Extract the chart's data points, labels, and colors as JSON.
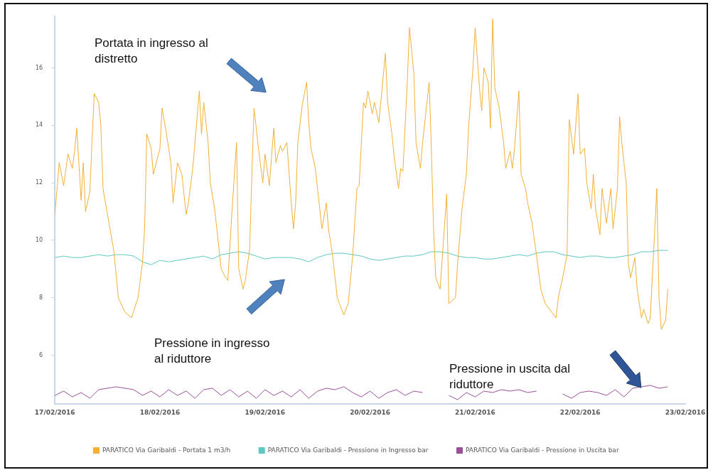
{
  "chart_data": {
    "type": "line",
    "x": [
      "2016-02-17T00:00",
      "2016-02-17T02:00",
      "2016-02-17T04:00",
      "2016-02-17T06:00",
      "2016-02-17T08:00",
      "2016-02-17T10:00",
      "2016-02-17T12:00",
      "2016-02-17T14:00",
      "2016-02-17T16:00",
      "2016-02-17T18:00",
      "2016-02-17T20:00",
      "2016-02-17T22:00",
      "2016-02-18T00:00",
      "2016-02-18T02:00",
      "2016-02-18T04:00",
      "2016-02-18T06:00",
      "2016-02-18T08:00",
      "2016-02-18T10:00",
      "2016-02-18T12:00",
      "2016-02-18T14:00",
      "2016-02-18T16:00",
      "2016-02-18T18:00",
      "2016-02-18T20:00",
      "2016-02-18T22:00",
      "2016-02-19T00:00",
      "2016-02-19T02:00",
      "2016-02-19T04:00",
      "2016-02-19T06:00",
      "2016-02-19T08:00",
      "2016-02-19T10:00",
      "2016-02-19T12:00",
      "2016-02-19T14:00",
      "2016-02-19T16:00",
      "2016-02-19T18:00",
      "2016-02-19T20:00",
      "2016-02-19T22:00",
      "2016-02-20T00:00",
      "2016-02-20T02:00",
      "2016-02-20T04:00",
      "2016-02-20T06:00",
      "2016-02-20T08:00",
      "2016-02-20T10:00",
      "2016-02-20T12:00",
      "2016-02-20T14:00",
      "2016-02-20T16:00",
      "2016-02-20T18:00",
      "2016-02-20T20:00",
      "2016-02-20T22:00",
      "2016-02-21T00:00",
      "2016-02-21T02:00",
      "2016-02-21T04:00",
      "2016-02-21T06:00",
      "2016-02-21T08:00",
      "2016-02-21T10:00",
      "2016-02-21T12:00",
      "2016-02-21T14:00",
      "2016-02-21T16:00",
      "2016-02-21T18:00",
      "2016-02-21T20:00",
      "2016-02-21T22:00",
      "2016-02-22T00:00",
      "2016-02-22T02:00",
      "2016-02-22T04:00",
      "2016-02-22T06:00",
      "2016-02-22T08:00",
      "2016-02-22T10:00",
      "2016-02-22T12:00",
      "2016-02-22T14:00",
      "2016-02-22T16:00",
      "2016-02-22T18:00",
      "2016-02-22T20:00"
    ],
    "series": [
      {
        "name": "PARATICO Via Garibaldi - Portata 1 m3/h",
        "color": "#f2b134",
        "x": [
          "2016-02-17T00:00",
          "2016-02-17T01:00",
          "2016-02-17T02:00",
          "2016-02-17T03:00",
          "2016-02-17T04:00",
          "2016-02-17T04:30",
          "2016-02-17T05:00",
          "2016-02-17T06:00",
          "2016-02-17T06:30",
          "2016-02-17T07:00",
          "2016-02-17T08:00",
          "2016-02-17T08:30",
          "2016-02-17T09:00",
          "2016-02-17T10:00",
          "2016-02-17T10:30",
          "2016-02-17T11:00",
          "2016-02-17T13:30",
          "2016-02-17T14:30",
          "2016-02-17T16:00",
          "2016-02-17T17:30",
          "2016-02-17T19:00",
          "2016-02-17T20:00",
          "2016-02-17T20:30",
          "2016-02-17T21:00",
          "2016-02-17T22:00",
          "2016-02-17T22:30",
          "2016-02-18T00:00",
          "2016-02-18T00:30",
          "2016-02-18T01:30",
          "2016-02-18T02:30",
          "2016-02-18T03:00",
          "2016-02-18T04:00",
          "2016-02-18T05:00",
          "2016-02-18T06:00",
          "2016-02-18T06:30",
          "2016-02-18T07:30",
          "2016-02-18T09:00",
          "2016-02-18T09:30",
          "2016-02-18T10:00",
          "2016-02-18T11:00",
          "2016-02-18T11:30",
          "2016-02-18T12:30",
          "2016-02-18T13:00",
          "2016-02-18T14:00",
          "2016-02-18T15:00",
          "2016-02-18T15:30",
          "2016-02-18T16:30",
          "2016-02-18T17:30",
          "2016-02-18T18:00",
          "2016-02-18T19:00",
          "2016-02-18T19:30",
          "2016-02-18T20:30",
          "2016-02-18T21:00",
          "2016-02-18T21:30",
          "2016-02-18T22:30",
          "2016-02-18T23:30",
          "2016-02-19T00:00",
          "2016-02-19T01:00",
          "2016-02-19T02:00",
          "2016-02-19T02:30",
          "2016-02-19T03:30",
          "2016-02-19T04:00",
          "2016-02-19T05:00",
          "2016-02-19T06:00",
          "2016-02-19T06:30",
          "2016-02-19T07:00",
          "2016-02-19T07:30",
          "2016-02-19T08:30",
          "2016-02-19T09:30",
          "2016-02-19T10:00",
          "2016-02-19T10:30",
          "2016-02-19T11:30",
          "2016-02-19T12:30",
          "2016-02-19T13:00",
          "2016-02-19T14:00",
          "2016-02-19T14:30",
          "2016-02-19T15:30",
          "2016-02-19T16:30",
          "2016-02-19T18:00",
          "2016-02-19T19:00",
          "2016-02-19T20:00",
          "2016-02-19T21:00",
          "2016-02-19T21:30",
          "2016-02-19T22:30",
          "2016-02-19T23:00",
          "2016-02-19T23:30",
          "2016-02-20T00:30",
          "2016-02-20T01:00",
          "2016-02-20T02:00",
          "2016-02-20T03:30",
          "2016-02-20T04:00",
          "2016-02-20T05:00",
          "2016-02-20T05:30",
          "2016-02-20T06:30",
          "2016-02-20T07:00",
          "2016-02-20T07:30",
          "2016-02-20T08:30",
          "2016-02-20T09:00",
          "2016-02-20T10:00",
          "2016-02-20T10:30",
          "2016-02-20T11:30",
          "2016-02-20T12:00",
          "2016-02-20T13:30",
          "2016-02-20T14:00",
          "2016-02-20T14:30",
          "2016-02-20T15:00",
          "2016-02-20T16:00",
          "2016-02-20T17:30",
          "2016-02-20T18:00",
          "2016-02-20T19:30",
          "2016-02-20T20:00",
          "2016-02-20T21:00",
          "2016-02-20T22:00",
          "2016-02-20T22:30",
          "2016-02-20T23:30",
          "2016-02-21T00:00",
          "2016-02-21T01:00",
          "2016-02-21T01:30",
          "2016-02-21T02:00",
          "2016-02-21T03:00",
          "2016-02-21T03:30",
          "2016-02-21T04:00",
          "2016-02-21T04:30",
          "2016-02-21T05:30",
          "2016-02-21T06:30",
          "2016-02-21T07:00",
          "2016-02-21T08:00",
          "2016-02-21T08:30",
          "2016-02-21T09:00",
          "2016-02-21T10:00",
          "2016-02-21T10:30",
          "2016-02-21T11:30",
          "2016-02-21T12:00",
          "2016-02-21T13:00",
          "2016-02-21T14:00",
          "2016-02-21T15:00",
          "2016-02-21T16:00",
          "2016-02-21T17:00",
          "2016-02-21T18:30",
          "2016-02-21T19:00",
          "2016-02-21T20:00",
          "2016-02-21T21:00",
          "2016-02-21T21:30",
          "2016-02-21T22:30",
          "2016-02-21T23:30",
          "2016-02-22T00:00",
          "2016-02-22T01:00",
          "2016-02-22T01:30",
          "2016-02-22T02:30",
          "2016-02-22T03:00",
          "2016-02-22T03:30",
          "2016-02-22T04:30",
          "2016-02-22T05:00",
          "2016-02-22T06:00",
          "2016-02-22T07:00",
          "2016-02-22T07:30",
          "2016-02-22T08:30",
          "2016-02-22T09:00",
          "2016-02-22T09:30",
          "2016-02-22T10:30",
          "2016-02-22T11:00",
          "2016-02-22T11:30",
          "2016-02-22T12:30",
          "2016-02-22T13:00",
          "2016-02-22T14:00",
          "2016-02-22T14:30",
          "2016-02-22T15:30",
          "2016-02-22T16:00",
          "2016-02-22T17:30",
          "2016-02-22T18:00",
          "2016-02-22T18:30",
          "2016-02-22T19:30",
          "2016-02-22T20:00"
        ],
        "values": [
          10.9,
          12.7,
          11.9,
          13.0,
          12.5,
          13.1,
          13.9,
          11.4,
          12.7,
          11.0,
          11.7,
          13.5,
          15.1,
          14.8,
          14.0,
          11.8,
          9.6,
          8.0,
          7.5,
          7.3,
          8.0,
          9.2,
          10.4,
          13.7,
          13.2,
          12.3,
          13.2,
          14.6,
          13.7,
          12.7,
          11.3,
          12.7,
          12.3,
          10.9,
          11.3,
          12.5,
          15.2,
          13.7,
          14.8,
          13.4,
          12.0,
          11.1,
          10.4,
          9.0,
          8.7,
          8.6,
          11.1,
          13.4,
          9.0,
          8.3,
          8.6,
          9.7,
          12.3,
          14.6,
          13.2,
          12.0,
          13.0,
          11.9,
          13.9,
          12.7,
          13.3,
          13.1,
          13.4,
          11.3,
          10.4,
          11.3,
          13.4,
          14.7,
          15.5,
          14.1,
          13.2,
          12.5,
          11.1,
          10.4,
          11.3,
          10.4,
          9.4,
          8.0,
          7.4,
          7.8,
          9.4,
          11.8,
          11.9,
          14.8,
          14.6,
          15.2,
          14.4,
          14.8,
          14.1,
          16.5,
          14.8,
          13.7,
          12.9,
          11.8,
          12.5,
          12.4,
          15.5,
          17.4,
          15.8,
          13.4,
          12.5,
          13.4,
          15.5,
          13.2,
          10.4,
          8.7,
          8.3,
          11.6,
          7.8,
          8.0,
          9.2,
          11.1,
          12.3,
          13.9,
          16.0,
          17.4,
          15.3,
          14.5,
          16.0,
          15.5,
          13.9,
          17.7,
          15.3,
          14.6,
          13.4,
          12.5,
          13.1,
          12.5,
          13.2,
          15.2,
          12.3,
          11.8,
          11.3,
          10.6,
          9.5,
          8.3,
          7.8,
          7.6,
          7.3,
          8.0,
          8.7,
          9.5,
          14.2,
          13.0,
          15.1,
          13.0,
          13.2,
          12.0,
          11.1,
          12.3,
          11.1,
          10.2,
          11.8,
          10.6,
          11.8,
          10.4,
          11.8,
          14.3,
          13.4,
          12.0,
          9.2,
          8.7,
          9.4,
          8.3,
          7.3,
          7.6,
          7.1,
          7.3,
          11.8,
          8.0,
          6.9,
          7.2,
          8.3
        ]
      },
      {
        "name": "PARATICO Via Garibaldi - Pressione in Ingresso bar",
        "color": "#5cc9c0",
        "values": [
          9.4,
          9.45,
          9.4,
          9.4,
          9.45,
          9.5,
          9.45,
          9.5,
          9.5,
          9.45,
          9.25,
          9.15,
          9.3,
          9.25,
          9.3,
          9.35,
          9.4,
          9.45,
          9.35,
          9.5,
          9.55,
          9.6,
          9.55,
          9.45,
          9.35,
          9.4,
          9.4,
          9.4,
          9.35,
          9.25,
          9.4,
          9.5,
          9.55,
          9.55,
          9.5,
          9.45,
          9.35,
          9.3,
          9.35,
          9.4,
          9.45,
          9.45,
          9.5,
          9.6,
          9.6,
          9.55,
          9.45,
          9.4,
          9.4,
          9.35,
          9.35,
          9.4,
          9.45,
          9.5,
          9.45,
          9.55,
          9.6,
          9.6,
          9.5,
          9.45,
          9.4,
          9.45,
          9.45,
          9.4,
          9.4,
          9.45,
          9.5,
          9.6,
          9.6,
          9.65,
          9.65
        ]
      },
      {
        "name": "PARATICO Via Garibaldi - Pressione in Uscita bar",
        "color": "#9b4f9b",
        "values": [
          4.6,
          4.75,
          4.55,
          4.7,
          4.5,
          4.8,
          4.85,
          4.9,
          4.85,
          4.8,
          4.6,
          4.75,
          4.55,
          4.8,
          4.6,
          4.75,
          4.5,
          4.8,
          4.85,
          4.6,
          4.8,
          4.55,
          4.75,
          4.5,
          4.8,
          4.6,
          4.75,
          4.55,
          4.8,
          4.5,
          4.75,
          4.85,
          4.8,
          4.9,
          4.7,
          4.55,
          4.75,
          4.5,
          4.7,
          4.8,
          4.6,
          4.75,
          4.7,
          null,
          null,
          4.6,
          4.45,
          4.7,
          4.55,
          4.75,
          4.7,
          4.8,
          4.75,
          4.8,
          4.7,
          4.75,
          null,
          null,
          4.65,
          4.5,
          4.7,
          4.75,
          4.7,
          4.6,
          4.8,
          4.55,
          4.85,
          4.9,
          4.95,
          4.85,
          4.9
        ]
      }
    ],
    "xlim": [
      "2016-02-17",
      "2016-02-23"
    ],
    "xticks": [
      {
        "value": "2016-02-17",
        "label": "17/02/2016"
      },
      {
        "value": "2016-02-18",
        "label": "18/02/2016"
      },
      {
        "value": "2016-02-19",
        "label": "19/02/2016"
      },
      {
        "value": "2016-02-20",
        "label": "20/02/2016"
      },
      {
        "value": "2016-02-21",
        "label": "21/02/2016"
      },
      {
        "value": "2016-02-22",
        "label": "22/02/2016"
      },
      {
        "value": "2016-02-23",
        "label": "23/02/2016"
      }
    ],
    "ylim": [
      4.3,
      17.8
    ],
    "yticks": [
      6,
      8,
      10,
      12,
      14,
      16
    ],
    "annotations": [
      "Portata in ingresso al distretto",
      "Pressione in ingresso al riduttore",
      "Pressione in uscita dal riduttore"
    ],
    "legend": "bottom",
    "marker": "none",
    "line_style": "solid"
  }
}
